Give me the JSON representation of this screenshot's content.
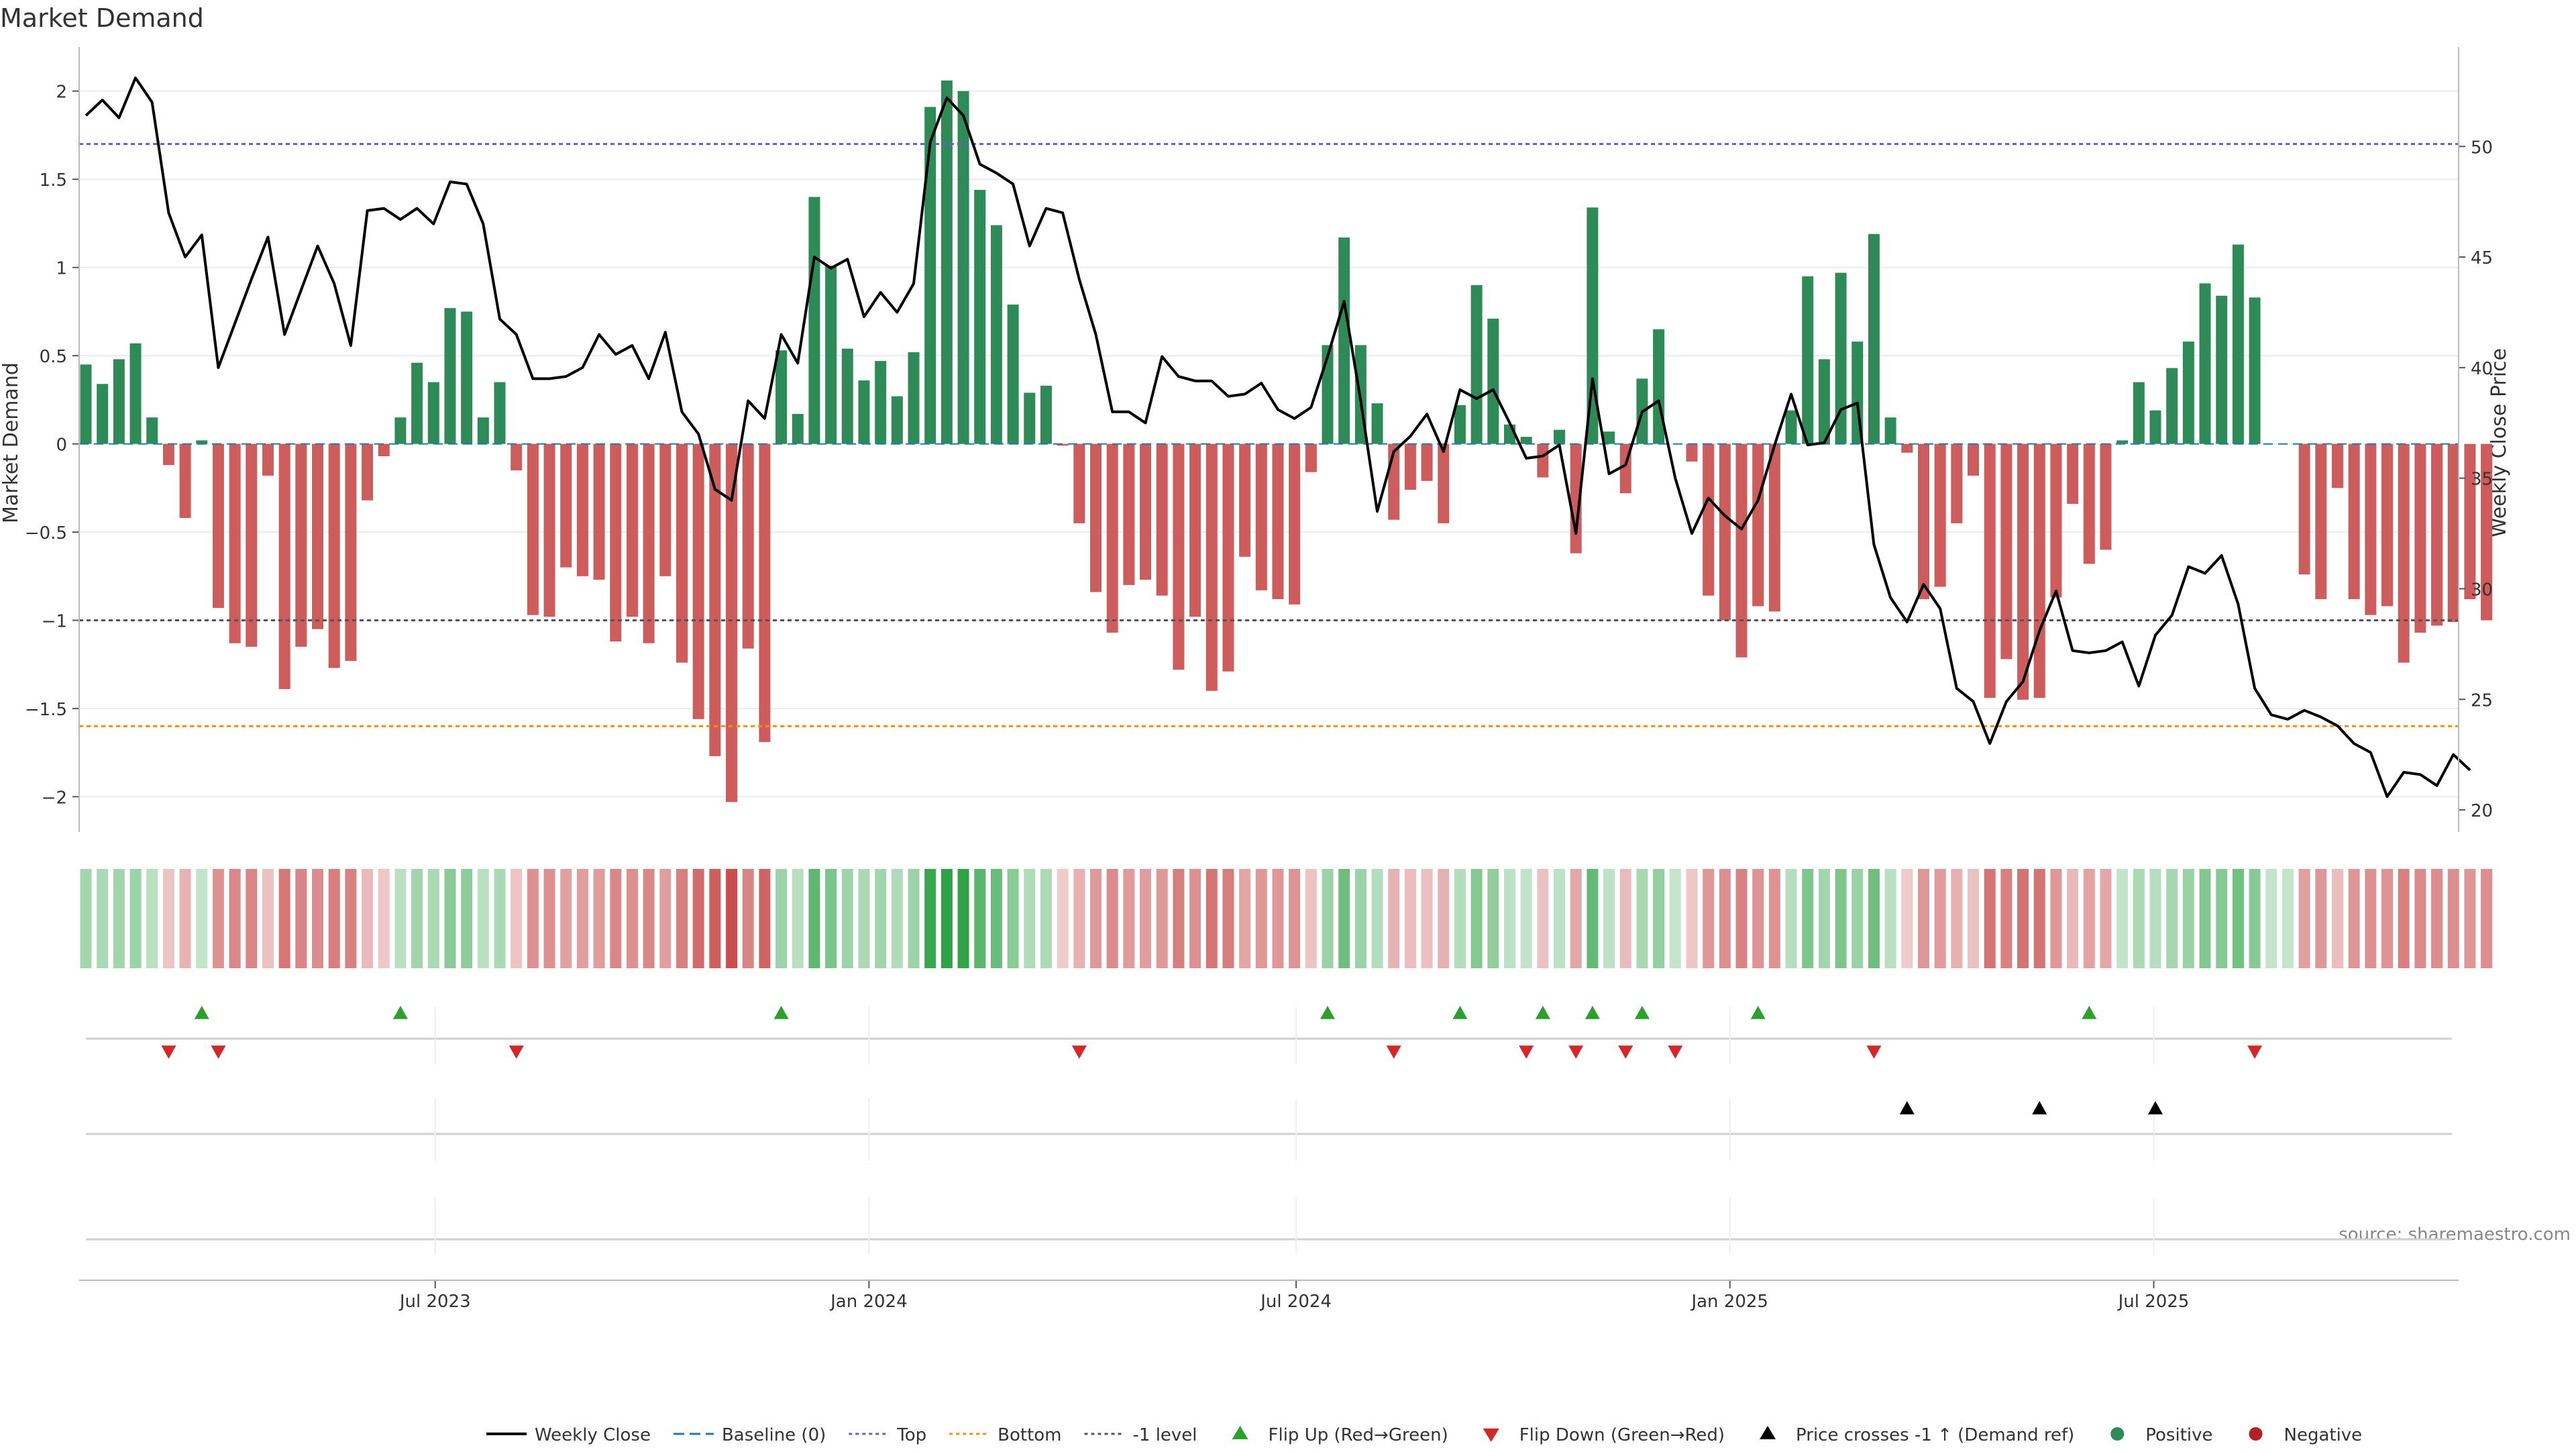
{
  "chart_data": {
    "type": "bar",
    "title": "Market Demand",
    "ylabel": "Market Demand",
    "y2label": "Weekly Close Price",
    "ylim": [
      -2.2,
      2.25
    ],
    "y2lim": [
      19.0,
      54.5
    ],
    "yticks": [
      2,
      1.5,
      1,
      0.5,
      0,
      -0.5,
      -1,
      -1.5,
      -2
    ],
    "ytick_labels": [
      "2",
      "1.5",
      "1",
      "0.5",
      "0",
      "−0.5",
      "−1",
      "−1.5",
      "−2"
    ],
    "y2ticks": [
      50,
      45,
      40,
      35,
      30,
      25,
      20
    ],
    "y2tick_labels": [
      "50",
      "45",
      "40",
      "35",
      "30",
      "25",
      "20"
    ],
    "levels": {
      "top": 1.7,
      "bottom": -1.6,
      "minus_one": -1.0
    },
    "x_start_week_offset": 0,
    "xtick_labels": [
      "Jul 2023",
      "Jan 2024",
      "Jul 2024",
      "Jan 2025",
      "Jul 2025"
    ],
    "xtick_week_index": [
      21.1,
      47.3,
      73.1,
      99.3,
      124.9
    ],
    "demand": [
      0.45,
      0.34,
      0.48,
      0.57,
      0.15,
      -0.12,
      -0.42,
      0.02,
      -0.93,
      -1.13,
      -1.15,
      -0.18,
      -1.39,
      -1.15,
      -1.05,
      -1.27,
      -1.23,
      -0.32,
      -0.07,
      0.15,
      0.46,
      0.35,
      0.77,
      0.75,
      0.15,
      0.35,
      -0.15,
      -0.97,
      -0.98,
      -0.7,
      -0.75,
      -0.77,
      -1.12,
      -0.98,
      -1.13,
      -0.75,
      -1.24,
      -1.56,
      -1.77,
      -2.03,
      -1.16,
      -1.69,
      0.53,
      0.17,
      1.4,
      1.01,
      0.54,
      0.36,
      0.47,
      0.27,
      0.52,
      1.91,
      2.06,
      2.0,
      1.44,
      1.24,
      0.79,
      0.29,
      0.33,
      -0.01,
      -0.45,
      -0.84,
      -1.07,
      -0.8,
      -0.77,
      -0.86,
      -1.28,
      -0.98,
      -1.4,
      -1.29,
      -0.64,
      -0.83,
      -0.88,
      -0.91,
      -0.16,
      0.56,
      1.17,
      0.56,
      0.23,
      -0.43,
      -0.26,
      -0.21,
      -0.45,
      0.22,
      0.9,
      0.71,
      0.11,
      0.04,
      -0.19,
      0.08,
      -0.62,
      1.34,
      0.07,
      -0.28,
      0.37,
      0.65,
      0.0,
      -0.1,
      -0.86,
      -1.0,
      -1.21,
      -0.92,
      -0.95,
      0.19,
      0.95,
      0.48,
      0.97,
      0.58,
      1.19,
      0.15,
      -0.05,
      -0.88,
      -0.81,
      -0.45,
      -0.18,
      -1.44,
      -1.22,
      -1.45,
      -1.44,
      -0.87,
      -0.34,
      -0.68,
      -0.6,
      0.02,
      0.35,
      0.19,
      0.43,
      0.58,
      0.91,
      0.84,
      1.13,
      0.83,
      0.0,
      0.0,
      -0.74,
      -0.88,
      -0.25,
      -0.88,
      -0.97,
      -0.92,
      -1.24,
      -1.07,
      -1.03,
      -1.01,
      -0.88,
      -1.0
    ],
    "weekly_close": [
      51.4,
      52.1,
      51.3,
      53.1,
      52.0,
      47.0,
      45.0,
      46.0,
      40.0,
      42.0,
      44.0,
      45.9,
      41.5,
      43.5,
      45.5,
      43.8,
      41.0,
      47.1,
      47.2,
      46.7,
      47.2,
      46.5,
      48.4,
      48.3,
      46.5,
      42.2,
      41.5,
      39.5,
      39.5,
      39.6,
      40.0,
      41.5,
      40.6,
      41.0,
      39.5,
      41.6,
      38.0,
      37.0,
      34.5,
      34.0,
      38.5,
      37.7,
      41.5,
      40.2,
      45.0,
      44.5,
      44.9,
      42.3,
      43.4,
      42.5,
      43.8,
      50.2,
      52.2,
      51.4,
      49.2,
      48.8,
      48.3,
      45.5,
      47.2,
      47.0,
      44.0,
      41.5,
      38.0,
      38.0,
      37.5,
      40.5,
      39.6,
      39.4,
      39.4,
      38.7,
      38.8,
      39.3,
      38.1,
      37.7,
      38.2,
      40.5,
      43.0,
      38.5,
      33.5,
      36.2,
      36.9,
      37.9,
      36.2,
      39.0,
      38.6,
      39.0,
      37.5,
      35.9,
      36.0,
      36.5,
      32.5,
      39.5,
      35.2,
      35.6,
      38.0,
      38.5,
      35.0,
      32.5,
      34.1,
      33.3,
      32.7,
      34.0,
      36.5,
      38.8,
      36.5,
      36.6,
      38.1,
      38.4,
      32.0,
      29.6,
      28.5,
      30.2,
      29.1,
      25.5,
      24.9,
      23.0,
      24.9,
      25.8,
      28.1,
      29.9,
      27.2,
      27.1,
      27.2,
      27.6,
      25.6,
      27.9,
      28.8,
      31.0,
      30.7,
      31.5,
      29.3,
      25.5,
      24.3,
      24.1,
      24.5,
      24.2,
      23.8,
      23.0,
      22.6,
      20.6,
      21.7,
      21.6,
      21.1,
      22.5,
      21.8
    ],
    "flip_up_index": [
      7,
      19,
      42,
      75,
      83,
      88,
      91,
      94,
      101,
      121
    ],
    "flip_down_index": [
      5,
      8,
      26,
      60,
      79,
      87,
      90,
      93,
      96,
      108,
      131
    ],
    "cross_up_index": [
      110,
      118,
      125
    ],
    "source_note": "source: sharemaestro.com",
    "legend": [
      {
        "label": "Weekly Close",
        "kind": "solid-line",
        "color": "#000000"
      },
      {
        "label": "Baseline (0)",
        "kind": "dash-line",
        "color": "#1f77b4"
      },
      {
        "label": "Top",
        "kind": "dot-line",
        "color": "#6a5acd"
      },
      {
        "label": "Bottom",
        "kind": "dot-line",
        "color": "#ff8c00"
      },
      {
        "label": "-1 level",
        "kind": "dot-line",
        "color": "#555555"
      },
      {
        "label": "Flip Up (Red→Green)",
        "kind": "tri-up",
        "color": "#2ca02c"
      },
      {
        "label": "Flip Down (Green→Red)",
        "kind": "tri-down",
        "color": "#d62728"
      },
      {
        "label": "Price crosses -1 ↑ (Demand ref)",
        "kind": "tri-up",
        "color": "#000000"
      },
      {
        "label": "Positive",
        "kind": "circle",
        "color": "#2e8b57"
      },
      {
        "label": "Negative",
        "kind": "circle",
        "color": "#b22222"
      }
    ],
    "colors": {
      "positive_bar": "#2e8b57",
      "negative_bar": "#cd5c5c",
      "close_line": "#000000",
      "top_line": "#6a5acd",
      "bottom_line": "#ff8c00",
      "minus_one_line": "#555555",
      "flip_up": "#2ca02c",
      "flip_down": "#d62728",
      "cross_up": "#000000"
    }
  }
}
